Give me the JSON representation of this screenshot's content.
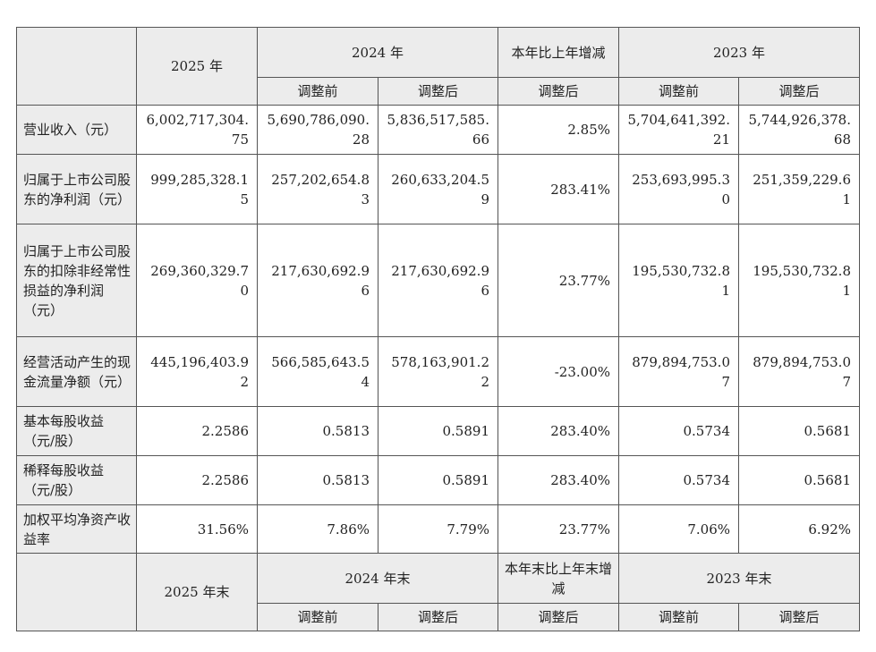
{
  "header": {
    "y2025": "2025 年",
    "y2024": "2024 年",
    "change": "本年比上年增减",
    "y2023": "2023 年",
    "before": "调整前",
    "after": "调整后"
  },
  "rows": [
    {
      "label": "营业收入（元）",
      "v": [
        "6,002,717,304.75",
        "5,690,786,090.28",
        "5,836,517,585.66",
        "2.85%",
        "5,704,641,392.21",
        "5,744,926,378.68"
      ]
    },
    {
      "label": "归属于上市公司股东的净利润（元）",
      "v": [
        "999,285,328.15",
        "257,202,654.83",
        "260,633,204.59",
        "283.41%",
        "253,693,995.30",
        "251,359,229.61"
      ]
    },
    {
      "label": "归属于上市公司股东的扣除非经常性损益的净利润（元）",
      "v": [
        "269,360,329.70",
        "217,630,692.96",
        "217,630,692.96",
        "23.77%",
        "195,530,732.81",
        "195,530,732.81"
      ]
    },
    {
      "label": "经营活动产生的现金流量净额（元）",
      "v": [
        "445,196,403.92",
        "566,585,643.54",
        "578,163,901.22",
        "-23.00%",
        "879,894,753.07",
        "879,894,753.07"
      ]
    },
    {
      "label": "基本每股收益（元/股）",
      "v": [
        "2.2586",
        "0.5813",
        "0.5891",
        "283.40%",
        "0.5734",
        "0.5681"
      ]
    },
    {
      "label": "稀释每股收益（元/股）",
      "v": [
        "2.2586",
        "0.5813",
        "0.5891",
        "283.40%",
        "0.5734",
        "0.5681"
      ]
    },
    {
      "label": "加权平均净资产收益率",
      "v": [
        "31.56%",
        "7.86%",
        "7.79%",
        "23.77%",
        "7.06%",
        "6.92%"
      ]
    }
  ],
  "footer": {
    "y2025_end": "2025 年末",
    "y2024_end": "2024 年末",
    "change_end": "本年末比上年末增减",
    "y2023_end": "2023 年末",
    "before": "调整前",
    "after": "调整后"
  }
}
